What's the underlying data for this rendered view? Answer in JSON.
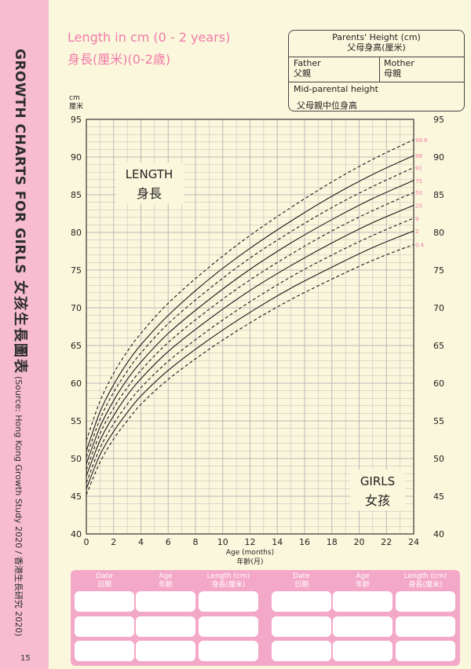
{
  "sidebar": {
    "title_en": "GROWTH CHARTS FOR GIRLS",
    "title_zh": "女孩生長圖表",
    "source": "(Source: Hong Kong Growth Study 2020 / 香港生長研究 2020)",
    "page_number": "15"
  },
  "header": {
    "title_en": "Length in cm (0 - 2 years)",
    "title_zh": "身長(厘米)(0-2歲)"
  },
  "parents_height": {
    "title_en": "Parents' Height (cm)",
    "title_zh": "父母身高(厘米)",
    "father_en": "Father",
    "father_zh": "父親",
    "mother_en": "Mother",
    "mother_zh": "母親",
    "mid_en": "Mid-parental height",
    "mid_zh": "父母親中位身高"
  },
  "chart_data": {
    "type": "line",
    "title": "LENGTH",
    "title_zh": "身長",
    "group_label": "GIRLS",
    "group_label_zh": "女孩",
    "ylabel": "cm",
    "ylabel_zh": "厘米",
    "xlabel": "Age (months)",
    "xlabel_zh": "年齡(月)",
    "xlim": [
      0,
      24
    ],
    "ylim": [
      40,
      95
    ],
    "x_ticks": [
      "0",
      "2",
      "4",
      "6",
      "8",
      "10",
      "12",
      "14",
      "16",
      "18",
      "20",
      "22",
      "24"
    ],
    "y_ticks": [
      "40",
      "45",
      "50",
      "55",
      "60",
      "65",
      "70",
      "75",
      "80",
      "85",
      "90",
      "95"
    ],
    "grid": true,
    "x": [
      0,
      1,
      2,
      3,
      4,
      6,
      9,
      12,
      15,
      18,
      21,
      24
    ],
    "series": [
      {
        "name": "99.6",
        "style": "dashed",
        "values": [
          52.4,
          57.6,
          61.3,
          64.2,
          66.6,
          70.6,
          75.4,
          79.6,
          83.3,
          86.7,
          89.7,
          92.3
        ]
      },
      {
        "name": "98",
        "style": "solid",
        "values": [
          51.0,
          56.2,
          59.8,
          62.7,
          65.1,
          69.0,
          73.8,
          77.9,
          81.5,
          84.8,
          87.7,
          90.2
        ]
      },
      {
        "name": "91",
        "style": "dashed",
        "values": [
          50.2,
          55.2,
          58.8,
          61.6,
          64.0,
          67.9,
          72.5,
          76.6,
          80.1,
          83.3,
          86.1,
          88.6
        ]
      },
      {
        "name": "75",
        "style": "solid",
        "values": [
          49.3,
          54.2,
          57.7,
          60.5,
          62.8,
          66.6,
          71.1,
          75.1,
          78.6,
          81.7,
          84.5,
          86.9
        ]
      },
      {
        "name": "50",
        "style": "dashed",
        "values": [
          48.5,
          53.3,
          56.7,
          59.4,
          61.7,
          65.4,
          69.8,
          73.7,
          77.1,
          80.2,
          82.9,
          85.3
        ]
      },
      {
        "name": "25",
        "style": "solid",
        "values": [
          47.7,
          52.4,
          55.7,
          58.4,
          60.6,
          64.2,
          68.5,
          72.3,
          75.6,
          78.6,
          81.3,
          83.6
        ]
      },
      {
        "name": "9",
        "style": "dashed",
        "values": [
          46.8,
          51.4,
          54.6,
          57.2,
          59.4,
          62.9,
          67.1,
          70.8,
          74.1,
          77.0,
          79.6,
          81.9
        ]
      },
      {
        "name": "2",
        "style": "solid",
        "values": [
          46.0,
          50.5,
          53.6,
          56.1,
          58.3,
          61.7,
          65.8,
          69.4,
          72.6,
          75.4,
          78.0,
          80.2
        ]
      },
      {
        "name": "0.4",
        "style": "dashed",
        "values": [
          45.2,
          49.5,
          52.6,
          55.0,
          57.2,
          60.5,
          64.5,
          68.0,
          71.1,
          73.8,
          76.3,
          78.4
        ]
      }
    ]
  },
  "record_form": {
    "headers": [
      {
        "en": "Date",
        "zh": "日期"
      },
      {
        "en": "Age",
        "zh": "年齡"
      },
      {
        "en": "Length (cm)",
        "zh": "身長(厘米)"
      },
      {
        "en": "Date",
        "zh": "日期"
      },
      {
        "en": "Age",
        "zh": "年齡"
      },
      {
        "en": "Length (cm)",
        "zh": "身長(厘米)"
      }
    ]
  },
  "colors": {
    "sidebar": "#f7bcd0",
    "accent_pink": "#f07ba9",
    "form_pink": "#f4a8c8",
    "background": "#fbf7dc",
    "grid": "#b9b9b9"
  }
}
